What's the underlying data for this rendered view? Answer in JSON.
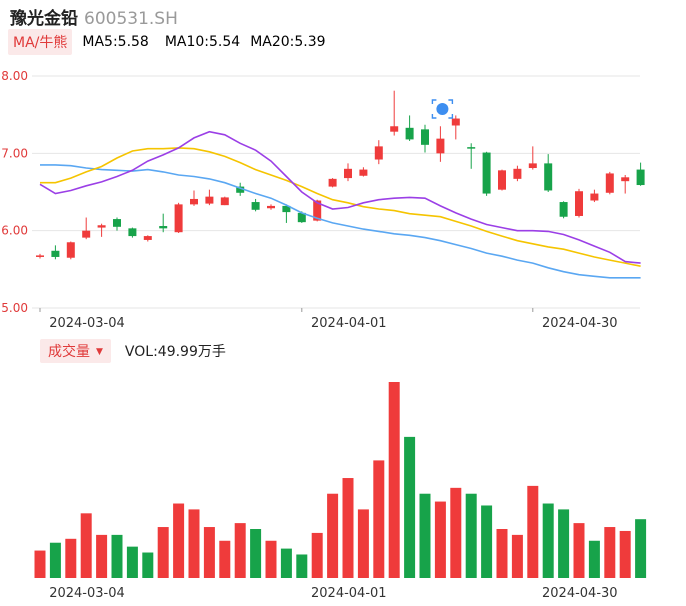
{
  "header": {
    "stock_name": "豫光金铅",
    "stock_code": "600531.SH"
  },
  "indicators": {
    "ma_tag": "MA/牛熊",
    "ma5_text": "MA5:5.58",
    "ma10_text": "MA10:5.54",
    "ma20_text": "MA20:5.39"
  },
  "volume_bar": {
    "tag": "成交量",
    "vol_text": "VOL:49.99万手"
  },
  "colors": {
    "up": "#ef3b3b",
    "down": "#17a34a",
    "ma5": "#9b3fe6",
    "ma10": "#f5c400",
    "ma20": "#5aa7f2",
    "grid": "#e6e6e6"
  },
  "chart_data": [
    {
      "type": "candlestick",
      "y_ticks": [
        "8.00",
        "7.00",
        "6.00",
        "5.00"
      ],
      "ylim": [
        5.0,
        8.0
      ],
      "x_labels": [
        "2024-03-04",
        "2024-04-01",
        "2024-04-30"
      ],
      "x_label_index": [
        0,
        17,
        32
      ],
      "candles": [
        {
          "o": 5.66,
          "c": 5.68,
          "h": 5.7,
          "l": 5.64
        },
        {
          "o": 5.74,
          "c": 5.66,
          "h": 5.81,
          "l": 5.63
        },
        {
          "o": 5.65,
          "c": 5.85,
          "h": 5.86,
          "l": 5.63
        },
        {
          "o": 5.91,
          "c": 6.0,
          "h": 6.17,
          "l": 5.89
        },
        {
          "o": 6.04,
          "c": 6.07,
          "h": 6.09,
          "l": 5.92
        },
        {
          "o": 6.15,
          "c": 6.05,
          "h": 6.17,
          "l": 6.0
        },
        {
          "o": 6.03,
          "c": 5.93,
          "h": 6.04,
          "l": 5.91
        },
        {
          "o": 5.88,
          "c": 5.93,
          "h": 5.94,
          "l": 5.86
        },
        {
          "o": 6.06,
          "c": 6.03,
          "h": 6.22,
          "l": 5.98
        },
        {
          "o": 5.98,
          "c": 6.34,
          "h": 6.36,
          "l": 5.97
        },
        {
          "o": 6.34,
          "c": 6.41,
          "h": 6.52,
          "l": 6.32
        },
        {
          "o": 6.35,
          "c": 6.44,
          "h": 6.53,
          "l": 6.33
        },
        {
          "o": 6.33,
          "c": 6.43,
          "h": 6.44,
          "l": 6.33
        },
        {
          "o": 6.57,
          "c": 6.49,
          "h": 6.62,
          "l": 6.45
        },
        {
          "o": 6.37,
          "c": 6.27,
          "h": 6.41,
          "l": 6.25
        },
        {
          "o": 6.29,
          "c": 6.32,
          "h": 6.34,
          "l": 6.27
        },
        {
          "o": 6.32,
          "c": 6.24,
          "h": 6.34,
          "l": 6.1
        },
        {
          "o": 6.23,
          "c": 6.11,
          "h": 6.25,
          "l": 6.1
        },
        {
          "o": 6.13,
          "c": 6.39,
          "h": 6.4,
          "l": 6.12
        },
        {
          "o": 6.57,
          "c": 6.67,
          "h": 6.68,
          "l": 6.56
        },
        {
          "o": 6.68,
          "c": 6.8,
          "h": 6.87,
          "l": 6.64
        },
        {
          "o": 6.71,
          "c": 6.79,
          "h": 6.82,
          "l": 6.7
        },
        {
          "o": 6.92,
          "c": 7.09,
          "h": 7.17,
          "l": 6.86
        },
        {
          "o": 7.28,
          "c": 7.35,
          "h": 7.81,
          "l": 7.23
        },
        {
          "o": 7.33,
          "c": 7.18,
          "h": 7.49,
          "l": 7.16
        },
        {
          "o": 7.31,
          "c": 7.11,
          "h": 7.37,
          "l": 7.01
        },
        {
          "o": 7.0,
          "c": 7.19,
          "h": 7.35,
          "l": 6.89
        },
        {
          "o": 7.36,
          "c": 7.45,
          "h": 7.49,
          "l": 7.18
        },
        {
          "o": 7.08,
          "c": 7.07,
          "h": 7.13,
          "l": 6.8
        },
        {
          "o": 7.01,
          "c": 6.48,
          "h": 7.02,
          "l": 6.45
        },
        {
          "o": 6.53,
          "c": 6.78,
          "h": 6.79,
          "l": 6.52
        },
        {
          "o": 6.67,
          "c": 6.8,
          "h": 6.84,
          "l": 6.64
        },
        {
          "o": 6.81,
          "c": 6.87,
          "h": 7.09,
          "l": 6.79
        },
        {
          "o": 6.87,
          "c": 6.52,
          "h": 6.99,
          "l": 6.5
        },
        {
          "o": 6.37,
          "c": 6.18,
          "h": 6.38,
          "l": 6.16
        },
        {
          "o": 6.19,
          "c": 6.51,
          "h": 6.54,
          "l": 6.17
        },
        {
          "o": 6.39,
          "c": 6.48,
          "h": 6.53,
          "l": 6.37
        },
        {
          "o": 6.49,
          "c": 6.74,
          "h": 6.76,
          "l": 6.47
        },
        {
          "o": 6.64,
          "c": 6.69,
          "h": 6.72,
          "l": 6.48
        },
        {
          "o": 6.79,
          "c": 6.59,
          "h": 6.88,
          "l": 6.58
        }
      ],
      "ma5": [
        6.6,
        6.48,
        6.52,
        6.58,
        6.63,
        6.7,
        6.78,
        6.9,
        6.98,
        7.07,
        7.2,
        7.28,
        7.24,
        7.13,
        7.04,
        6.9,
        6.7,
        6.5,
        6.36,
        6.28,
        6.3,
        6.36,
        6.4,
        6.42,
        6.43,
        6.42,
        6.32,
        6.23,
        6.15,
        6.08,
        6.04,
        6.0,
        6.0,
        5.99,
        5.95,
        5.88,
        5.8,
        5.72,
        5.6,
        5.58
      ],
      "ma10": [
        6.62,
        6.62,
        6.68,
        6.76,
        6.83,
        6.94,
        7.03,
        7.06,
        7.06,
        7.07,
        7.06,
        7.02,
        6.96,
        6.88,
        6.79,
        6.72,
        6.65,
        6.57,
        6.48,
        6.4,
        6.36,
        6.31,
        6.28,
        6.26,
        6.22,
        6.2,
        6.18,
        6.12,
        6.06,
        5.99,
        5.93,
        5.87,
        5.83,
        5.79,
        5.76,
        5.71,
        5.66,
        5.62,
        5.58,
        5.54
      ],
      "ma20": [
        6.85,
        6.85,
        6.84,
        6.81,
        6.79,
        6.78,
        6.77,
        6.79,
        6.76,
        6.72,
        6.7,
        6.67,
        6.62,
        6.55,
        6.48,
        6.42,
        6.33,
        6.23,
        6.16,
        6.1,
        6.06,
        6.02,
        5.99,
        5.96,
        5.94,
        5.91,
        5.87,
        5.82,
        5.77,
        5.71,
        5.67,
        5.62,
        5.58,
        5.52,
        5.47,
        5.43,
        5.41,
        5.39,
        5.39,
        5.39
      ]
    },
    {
      "type": "bar",
      "name": "volume",
      "x_labels": [
        "2024-03-04",
        "2024-04-01",
        "2024-04-30"
      ],
      "values": [
        14,
        18,
        20,
        33,
        22,
        22,
        16,
        13,
        26,
        38,
        35,
        26,
        19,
        28,
        25,
        19,
        15,
        12,
        23,
        43,
        51,
        35,
        60,
        100,
        72,
        43,
        39,
        46,
        43,
        37,
        25,
        22,
        47,
        38,
        35,
        28,
        19,
        26,
        24,
        30
      ],
      "up": [
        true,
        false,
        true,
        true,
        true,
        false,
        false,
        false,
        true,
        true,
        true,
        true,
        true,
        true,
        false,
        true,
        false,
        false,
        true,
        true,
        true,
        true,
        true,
        true,
        false,
        false,
        true,
        true,
        false,
        false,
        true,
        true,
        true,
        false,
        false,
        true,
        false,
        true,
        true,
        false
      ]
    }
  ]
}
